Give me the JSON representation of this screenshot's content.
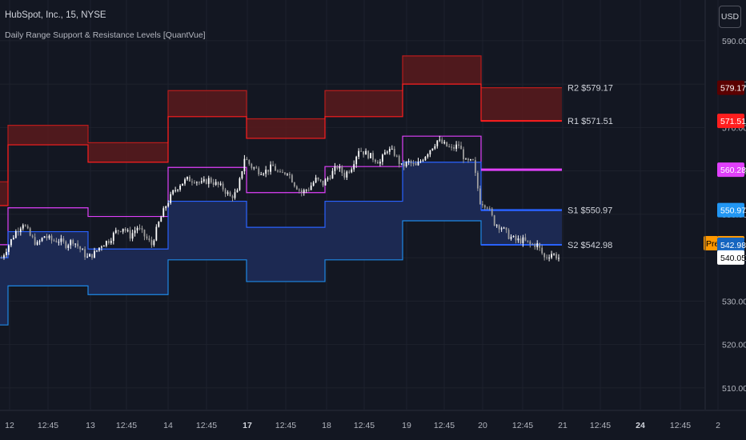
{
  "header": {
    "title": "HubSpot, Inc., 15, NYSE",
    "subtitle": "Daily Range Support & Resistance Levels [QuantVue]"
  },
  "currency_button": "USD",
  "colors": {
    "background": "#131722",
    "r2": "#b71c1c",
    "r1": "#ff1e1e",
    "pivot": "#e040fb",
    "s1": "#2962ff",
    "s2": "#1e88e5",
    "upper_fill": "#5a1a1c",
    "lower_fill": "#1c2a55",
    "candle_up": "#ffffff",
    "candle_down": "#9e9e9e",
    "pre_market": "#ff9800"
  },
  "chart_data": {
    "type": "line",
    "title": "HubSpot, Inc., 15, NYSE",
    "indicator": "Daily Range Support & Resistance Levels [QuantVue]",
    "ylim": [
      505,
      592
    ],
    "y_ticks": [
      510,
      520,
      530,
      540,
      550,
      560,
      570,
      580,
      590
    ],
    "x_tick_labels": [
      {
        "label": "12",
        "bold": false
      },
      {
        "label": "12:45",
        "bold": false
      },
      {
        "label": "13",
        "bold": false
      },
      {
        "label": "12:45",
        "bold": false
      },
      {
        "label": "14",
        "bold": false
      },
      {
        "label": "12:45",
        "bold": false
      },
      {
        "label": "17",
        "bold": true
      },
      {
        "label": "12:45",
        "bold": false
      },
      {
        "label": "18",
        "bold": false
      },
      {
        "label": "12:45",
        "bold": false
      },
      {
        "label": "19",
        "bold": false
      },
      {
        "label": "12:45",
        "bold": false
      },
      {
        "label": "20",
        "bold": false
      },
      {
        "label": "12:45",
        "bold": false
      },
      {
        "label": "21",
        "bold": false
      },
      {
        "label": "12:45",
        "bold": false
      },
      {
        "label": "24",
        "bold": true
      },
      {
        "label": "12:45",
        "bold": false
      },
      {
        "label": "2",
        "bold": false
      }
    ],
    "sessions": [
      "11",
      "12",
      "13",
      "14",
      "17",
      "18",
      "19",
      "20"
    ],
    "levels": {
      "R2": [
        557.5,
        570.5,
        566.5,
        578.5,
        572.0,
        578.5,
        586.5,
        579.17
      ],
      "R1": [
        552.0,
        566.0,
        562.0,
        572.5,
        567.5,
        572.5,
        580.0,
        571.51
      ],
      "Pivot": [
        543.0,
        551.5,
        549.5,
        560.8,
        555.0,
        561.0,
        568.0,
        560.28
      ],
      "S1": [
        540.0,
        546.0,
        542.0,
        553.0,
        547.0,
        553.0,
        562.0,
        550.97
      ],
      "S2": [
        524.5,
        533.5,
        531.5,
        539.5,
        534.5,
        539.5,
        548.5,
        542.98
      ]
    },
    "level_labels": [
      {
        "name": "R2",
        "value": "579.17",
        "text": "R2 $579.17"
      },
      {
        "name": "R1",
        "value": "571.51",
        "text": "R1 $571.51"
      },
      {
        "name": "S1",
        "value": "550.97",
        "text": "S1 $550.97"
      },
      {
        "name": "S2",
        "value": "542.98",
        "text": "S2 $542.98"
      }
    ],
    "price_badges": [
      {
        "name": "R2",
        "value": "579.17",
        "bg": "#5b0000",
        "fg": "#ffffff"
      },
      {
        "name": "R1",
        "value": "571.51",
        "bg": "#ff1e1e",
        "fg": "#ffffff"
      },
      {
        "name": "Pivot",
        "value": "560.28",
        "bg": "#e040fb",
        "fg": "#ffffff"
      },
      {
        "name": "S1",
        "value": "550.97",
        "bg": "#2196f3",
        "fg": "#ffffff"
      },
      {
        "name": "Pre",
        "value": "543.34",
        "bg": "#ff9800",
        "fg": "#000000",
        "tag": "Pre"
      },
      {
        "name": "S2",
        "value": "542.98",
        "bg": "#1565c0",
        "fg": "#ffffff"
      },
      {
        "name": "Last",
        "value": "540.05",
        "bg": "#ffffff",
        "fg": "#000000"
      }
    ],
    "price_path": [
      [
        0,
        540
      ],
      [
        3,
        543
      ],
      [
        6,
        546
      ],
      [
        9,
        548
      ],
      [
        12,
        545
      ],
      [
        15,
        543
      ],
      [
        18,
        545
      ],
      [
        21,
        544
      ],
      [
        24,
        544
      ],
      [
        27,
        543
      ],
      [
        30,
        544
      ],
      [
        33,
        542
      ],
      [
        36,
        540
      ],
      [
        39,
        541
      ],
      [
        42,
        543
      ],
      [
        45,
        544
      ],
      [
        48,
        546
      ],
      [
        51,
        547
      ],
      [
        54,
        545
      ],
      [
        57,
        547
      ],
      [
        60,
        545
      ],
      [
        63,
        543
      ],
      [
        66,
        548
      ],
      [
        69,
        552
      ],
      [
        72,
        555
      ],
      [
        75,
        557
      ],
      [
        78,
        558
      ],
      [
        81,
        558
      ],
      [
        84,
        557
      ],
      [
        87,
        558
      ],
      [
        90,
        557
      ],
      [
        93,
        556
      ],
      [
        96,
        554
      ],
      [
        99,
        555
      ],
      [
        102,
        563
      ],
      [
        105,
        561
      ],
      [
        108,
        560
      ],
      [
        111,
        560
      ],
      [
        114,
        561
      ],
      [
        117,
        559
      ],
      [
        120,
        560
      ],
      [
        123,
        557
      ],
      [
        126,
        555
      ],
      [
        129,
        556
      ],
      [
        132,
        558
      ],
      [
        135,
        557
      ],
      [
        138,
        559
      ],
      [
        141,
        561
      ],
      [
        144,
        559
      ],
      [
        147,
        561
      ],
      [
        150,
        565
      ],
      [
        153,
        564
      ],
      [
        156,
        563
      ],
      [
        159,
        562
      ],
      [
        162,
        565
      ],
      [
        165,
        564
      ],
      [
        168,
        561
      ],
      [
        171,
        562
      ],
      [
        174,
        561
      ],
      [
        177,
        563
      ],
      [
        180,
        565
      ],
      [
        183,
        567
      ],
      [
        186,
        566
      ],
      [
        189,
        565
      ],
      [
        192,
        566
      ],
      [
        195,
        562
      ],
      [
        198,
        562
      ],
      [
        201,
        553
      ],
      [
        204,
        552
      ],
      [
        207,
        548
      ],
      [
        210,
        547
      ],
      [
        213,
        545
      ],
      [
        216,
        544
      ],
      [
        219,
        544
      ],
      [
        222,
        543
      ],
      [
        225,
        543
      ],
      [
        228,
        540
      ],
      [
        231,
        541
      ],
      [
        234,
        540
      ]
    ]
  }
}
